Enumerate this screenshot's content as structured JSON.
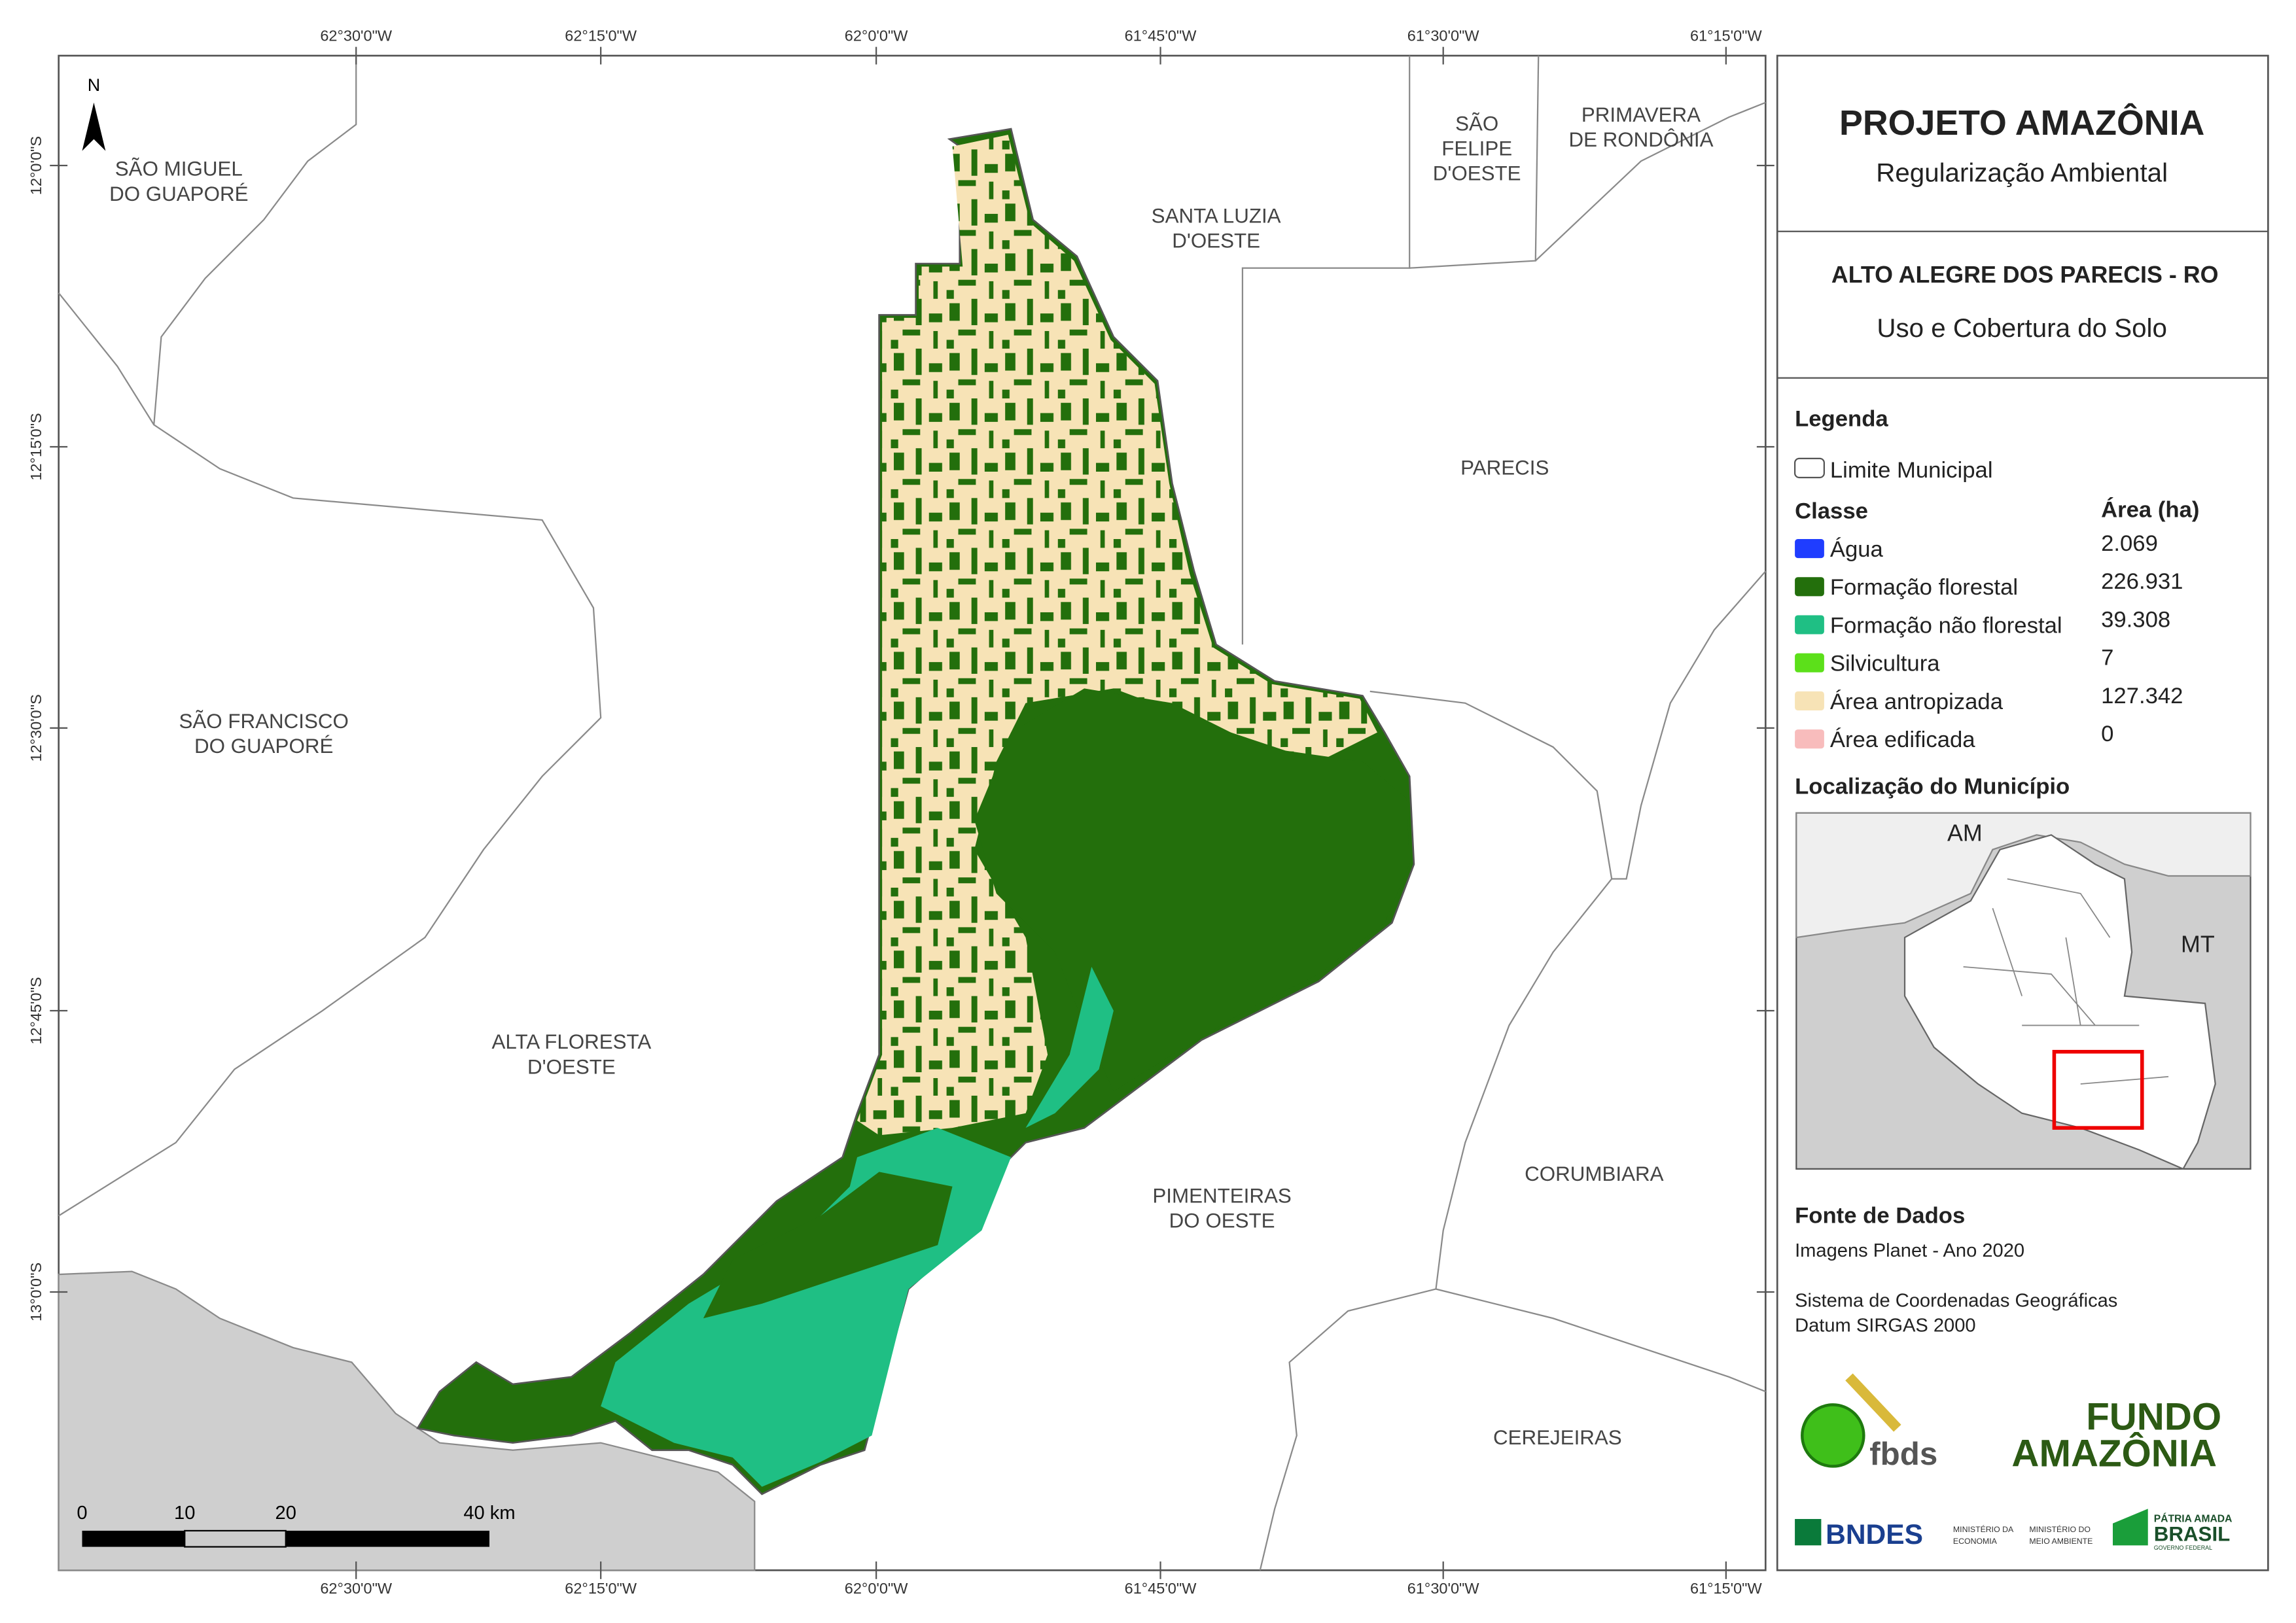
{
  "map": {
    "top_coords": [
      "62°30'0\"W",
      "62°15'0\"W",
      "62°0'0\"W",
      "61°45'0\"W",
      "61°30'0\"W",
      "61°15'0\"W"
    ],
    "bottom_coords": [
      "62°30'0\"W",
      "62°15'0\"W",
      "62°0'0\"W",
      "61°45'0\"W",
      "61°30'0\"W",
      "61°15'0\"W"
    ],
    "left_coords": [
      "12°0'0\"S",
      "12°15'0\"S",
      "12°30'0\"S",
      "12°45'0\"S",
      "13°0'0\"S"
    ],
    "north": "N",
    "places": [
      [
        "SÃO MIGUEL",
        "DO GUAPORÉ"
      ],
      [
        "SANTA LUZIA",
        "D'OESTE"
      ],
      [
        "SÃO",
        "FELIPE",
        "D'OESTE"
      ],
      [
        "PRIMAVERA",
        "DE RONDÔNIA"
      ],
      [
        "PARECIS"
      ],
      [
        "SÃO FRANCISCO",
        "DO GUAPORÉ"
      ],
      [
        "ALTA FLORESTA",
        "D'OESTE"
      ],
      [
        "PIMENTEIRAS",
        "DO OESTE"
      ],
      [
        "CORUMBIARA"
      ],
      [
        "CEREJEIRAS"
      ]
    ],
    "scale_labels": [
      "0",
      "10",
      "20",
      "40 km"
    ]
  },
  "panel": {
    "title": "PROJETO AMAZÔNIA",
    "subtitle": "Regularização Ambiental",
    "municipality": "ALTO ALEGRE DOS PARECIS - RO",
    "theme": "Uso e Cobertura do Solo",
    "legend_title": "Legenda",
    "boundary": "Limite Municipal",
    "class_header": "Classe",
    "area_header": "Área (ha)",
    "classes": [
      {
        "name": "Água",
        "area": "2.069",
        "color": "#1f3dff"
      },
      {
        "name": "Formação florestal",
        "area": "226.931",
        "color": "#236f0c"
      },
      {
        "name": "Formação não florestal",
        "area": "39.308",
        "color": "#1fbf84"
      },
      {
        "name": "Silvicultura",
        "area": "7",
        "color": "#5ce01a"
      },
      {
        "name": "Área antropizada",
        "area": "127.342",
        "color": "#f7e3b6"
      },
      {
        "name": "Área edificada",
        "area": "0",
        "color": "#f8bcbc"
      }
    ],
    "location_title": "Localização do Município",
    "inset_labels": [
      "AM",
      "MT"
    ],
    "sources_title": "Fonte de Dados",
    "sources": [
      "Imagens Planet - Ano 2020",
      "Sistema de Coordenadas Geográficas",
      "Datum SIRGAS 2000"
    ],
    "logos": [
      "fbds",
      "FUNDO",
      "AMAZÔNIA",
      "BNDES",
      "MINISTÉRIO DA",
      "ECONOMIA",
      "MINISTÉRIO DO",
      "MEIO AMBIENTE",
      "PÁTRIA AMADA",
      "BRASIL",
      "GOVERNO FEDERAL"
    ]
  }
}
